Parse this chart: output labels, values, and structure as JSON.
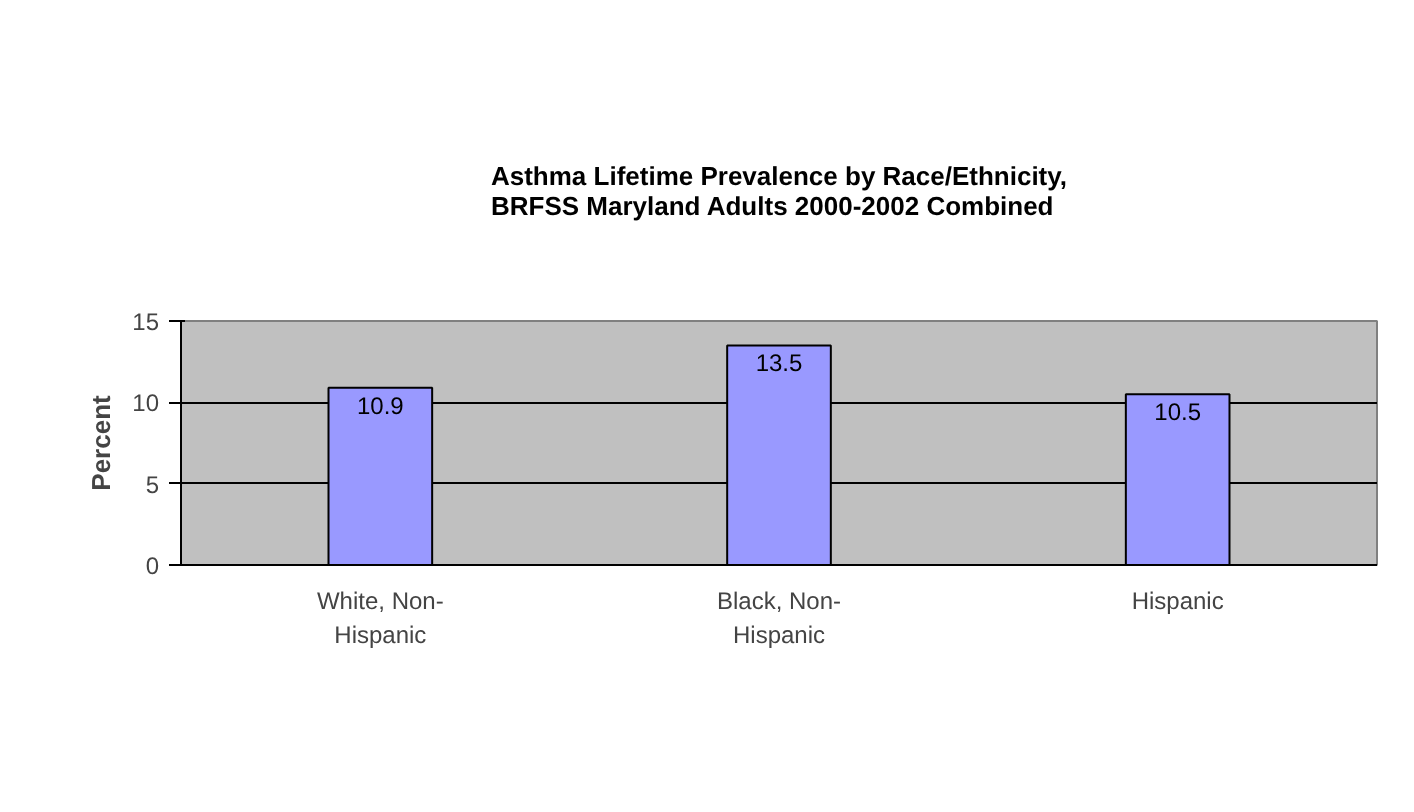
{
  "chart_data": {
    "type": "bar",
    "title": "Asthma Lifetime Prevalence by Race/Ethnicity,\nBRFSS Maryland Adults 2000-2002 Combined",
    "ylabel": "Percent",
    "categories": [
      "White, Non-Hispanic",
      "Black, Non-Hispanic",
      "Hispanic"
    ],
    "values": [
      10.9,
      13.5,
      10.5
    ],
    "color": "#9999ff",
    "ylim": [
      0,
      15
    ],
    "yticks": [
      0,
      5,
      10,
      15
    ],
    "grid": "y",
    "data_labels": true
  }
}
